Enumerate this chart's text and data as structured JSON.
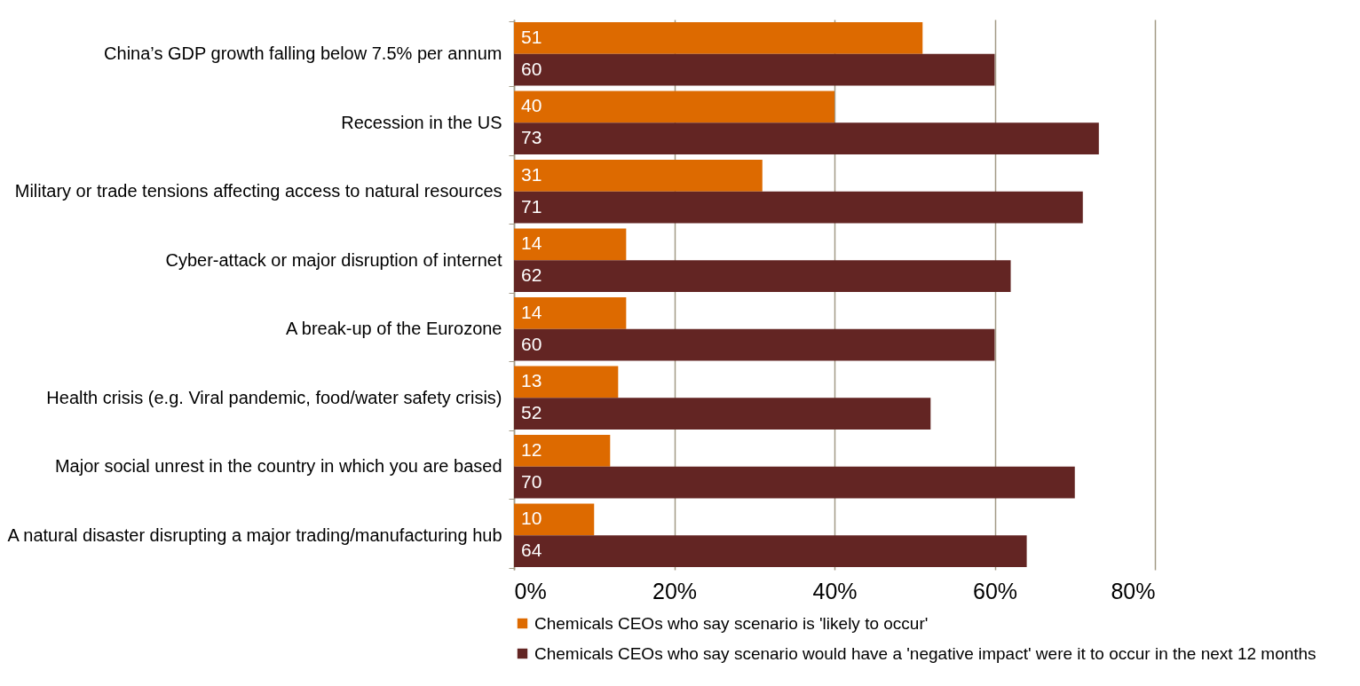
{
  "chart_data": {
    "type": "bar",
    "orientation": "horizontal",
    "categories": [
      "China’s GDP growth falling below 7.5% per annum",
      "Recession in the US",
      "Military or trade tensions affecting access to natural resources",
      "Cyber-attack or major disruption of internet",
      "A break-up of the Eurozone",
      "Health crisis (e.g. Viral pandemic, food/water safety crisis)",
      "Major social unrest in the country in which you are based",
      "A natural disaster disrupting a major trading/manufacturing hub"
    ],
    "series": [
      {
        "name": "Chemicals CEOs who say scenario is 'likely to occur'",
        "color": "#dd6a00",
        "values": [
          51,
          40,
          31,
          14,
          14,
          13,
          12,
          10
        ]
      },
      {
        "name": "Chemicals CEOs who say scenario would have a 'negative impact' were it to occur in the next 12 months",
        "color": "#632523",
        "values": [
          60,
          73,
          71,
          62,
          60,
          52,
          70,
          64
        ]
      }
    ],
    "xlim": [
      0,
      80
    ],
    "xticks": [
      {
        "value": 0,
        "label": "0%"
      },
      {
        "value": 20,
        "label": "20%"
      },
      {
        "value": 40,
        "label": "40%"
      },
      {
        "value": 60,
        "label": "60%"
      },
      {
        "value": 80,
        "label": "80%"
      }
    ],
    "grid": "x",
    "legend": "bottom",
    "data_labels": true
  }
}
